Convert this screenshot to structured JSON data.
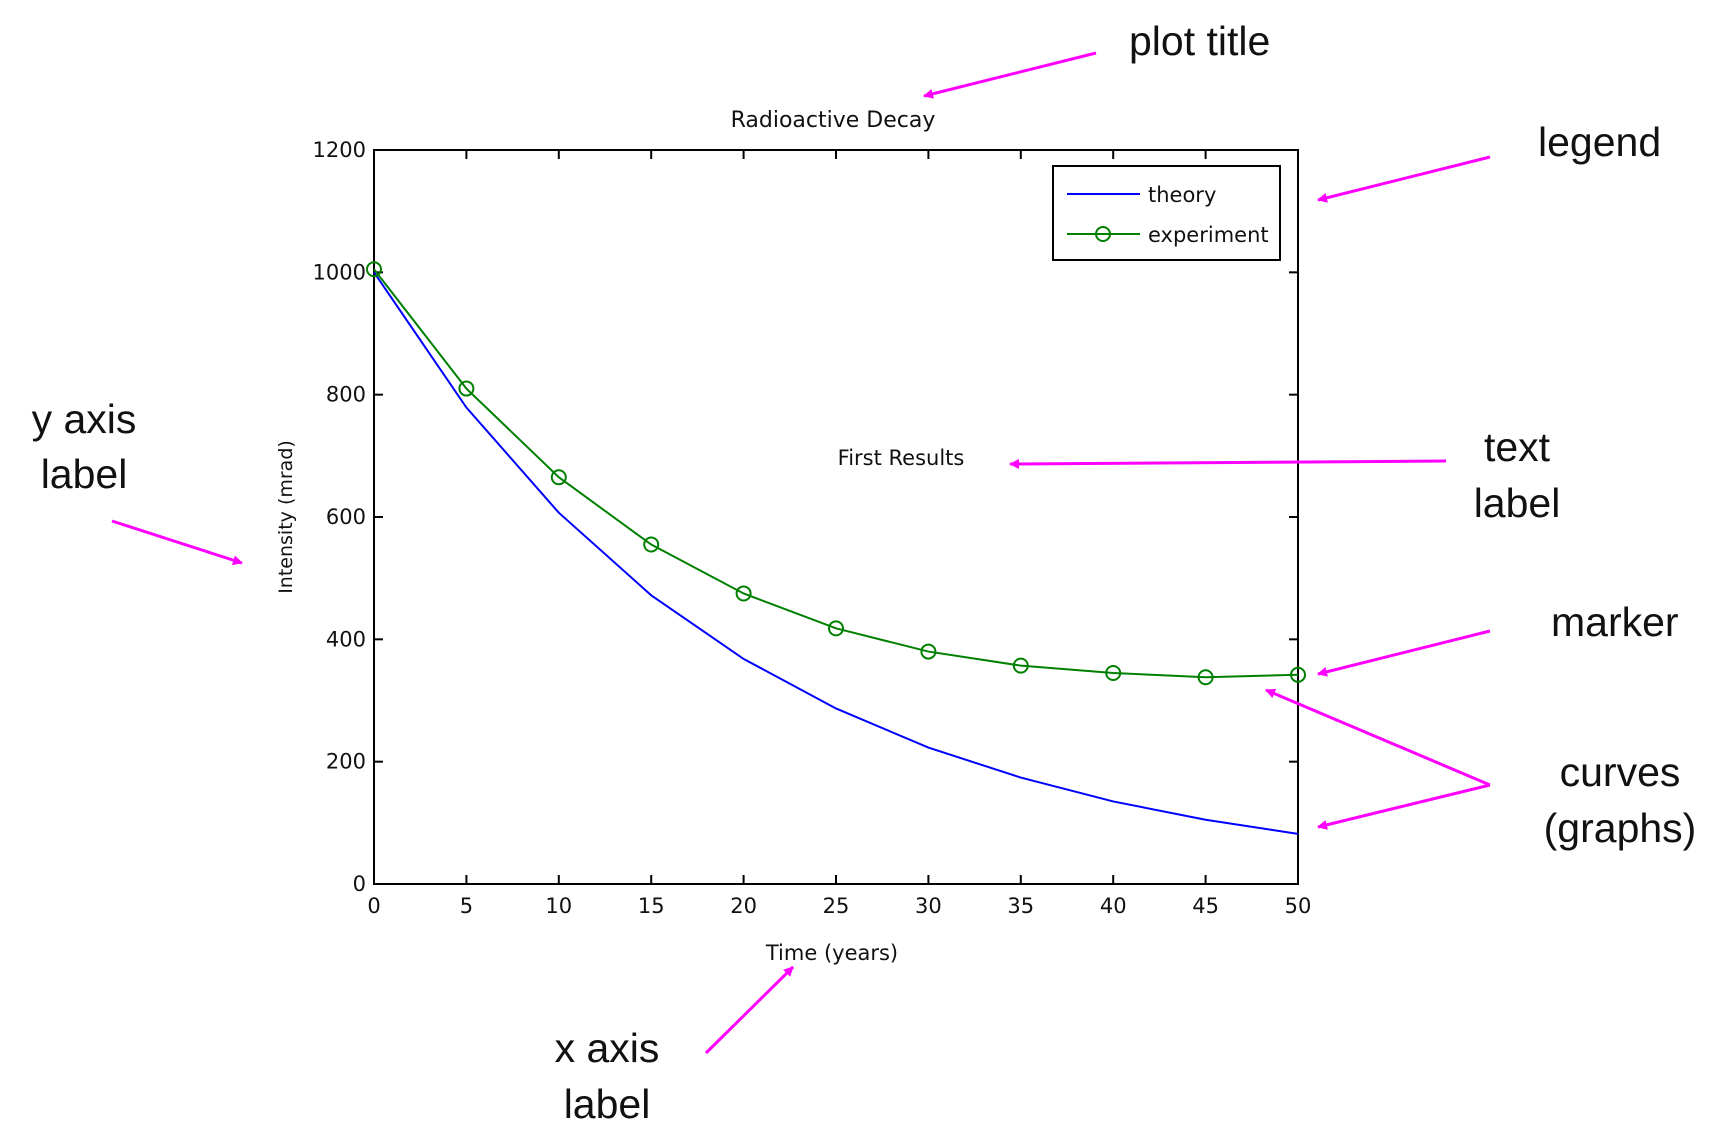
{
  "chart_data": {
    "type": "line",
    "title": "Radioactive Decay",
    "xlabel": "Time (years)",
    "ylabel": "Intensity (mrad)",
    "xlim": [
      0,
      50
    ],
    "ylim": [
      0,
      1200
    ],
    "x_ticks": [
      "0",
      "5",
      "10",
      "15",
      "20",
      "25",
      "30",
      "35",
      "40",
      "45",
      "50"
    ],
    "y_ticks": [
      "0",
      "200",
      "400",
      "600",
      "800",
      "1000",
      "1200"
    ],
    "grid": false,
    "legend_position": "top-right",
    "annotation": "First Results",
    "series": [
      {
        "name": "theory",
        "color": "#0000ff",
        "marker": "none",
        "x": [
          0,
          5,
          10,
          15,
          20,
          25,
          30,
          35,
          40,
          45,
          50
        ],
        "values": [
          1000,
          779,
          607,
          472,
          368,
          287,
          223,
          174,
          135,
          105,
          82
        ]
      },
      {
        "name": "experiment",
        "color": "#008000",
        "marker": "circle",
        "x": [
          0,
          5,
          10,
          15,
          20,
          25,
          30,
          35,
          40,
          45,
          50
        ],
        "values": [
          1005,
          810,
          665,
          555,
          475,
          418,
          380,
          357,
          345,
          338,
          342
        ]
      }
    ]
  },
  "callouts": {
    "plot_title": "plot title",
    "legend": "legend",
    "y_axis_label": [
      "y axis",
      "label"
    ],
    "text_label": [
      "text",
      "label"
    ],
    "marker": "marker",
    "curves": [
      "curves",
      "(graphs)"
    ],
    "x_axis_label": [
      "x axis",
      "label"
    ]
  },
  "callout_color": "#ff00ff"
}
